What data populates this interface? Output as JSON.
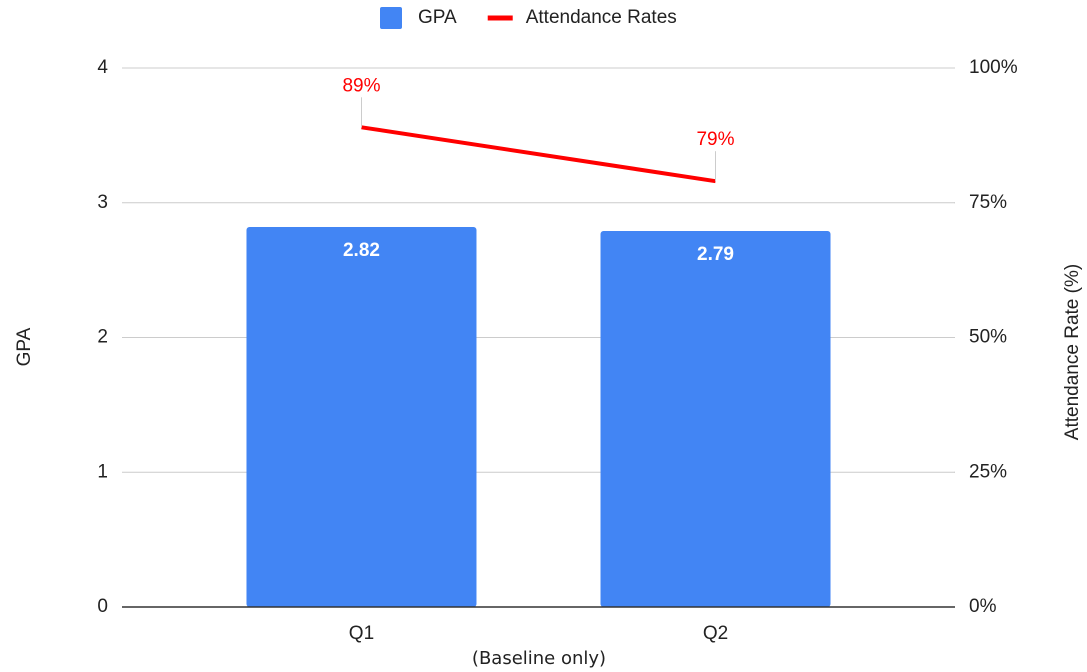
{
  "chart_data": {
    "type": "combo",
    "categories": [
      "Q1",
      "Q2"
    ],
    "series": [
      {
        "name": "GPA",
        "type": "bar",
        "color": "#4285f4",
        "values": [
          2.82,
          2.79
        ]
      },
      {
        "name": "Attendance Rates",
        "type": "line",
        "axis": "y2",
        "color": "#ff0000",
        "values": [
          89,
          79
        ],
        "value_labels": [
          "89%",
          "79%"
        ]
      }
    ],
    "xlabel": "(Baseline only)",
    "ylabel": "GPA",
    "y2label": "Attendance Rate (%)",
    "ylim": [
      0,
      4
    ],
    "yticks": [
      0,
      1,
      2,
      3,
      4
    ],
    "y2lim": [
      0,
      100
    ],
    "y2ticks": [
      {
        "value": 0,
        "label": "0%"
      },
      {
        "value": 25,
        "label": "25%"
      },
      {
        "value": 50,
        "label": "50%"
      },
      {
        "value": 75,
        "label": "75%"
      },
      {
        "value": 100,
        "label": "100%"
      }
    ],
    "grid": true,
    "legend": "top"
  }
}
